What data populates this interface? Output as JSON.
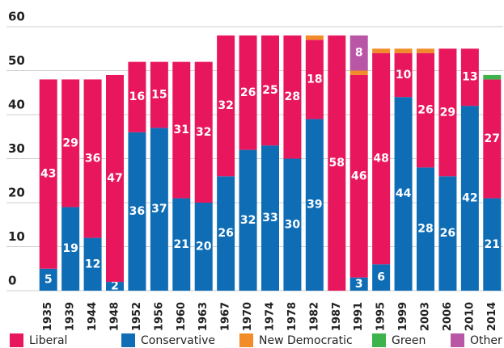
{
  "chart_data": {
    "type": "stacked_bar",
    "categories": [
      "1935",
      "1939",
      "1944",
      "1948",
      "1952",
      "1956",
      "1960",
      "1963",
      "1967",
      "1970",
      "1974",
      "1978",
      "1982",
      "1987",
      "1991",
      "1995",
      "1999",
      "2003",
      "2006",
      "2010",
      "2014"
    ],
    "series": [
      {
        "name": "Liberal",
        "color": "#e8175d",
        "values": [
          43,
          29,
          36,
          47,
          16,
          15,
          31,
          32,
          32,
          26,
          25,
          28,
          18,
          58,
          46,
          48,
          10,
          26,
          29,
          13,
          27
        ]
      },
      {
        "name": "Conservative",
        "color": "#0f6db5",
        "values": [
          5,
          19,
          12,
          2,
          36,
          37,
          21,
          20,
          26,
          32,
          33,
          30,
          39,
          0,
          3,
          6,
          44,
          28,
          26,
          42,
          21
        ]
      },
      {
        "name": "New Democratic",
        "color": "#f28c28",
        "values": [
          0,
          0,
          0,
          0,
          0,
          0,
          0,
          0,
          0,
          0,
          0,
          0,
          1,
          0,
          1,
          1,
          1,
          1,
          0,
          0,
          0
        ]
      },
      {
        "name": "Green",
        "color": "#3cb44b",
        "values": [
          0,
          0,
          0,
          0,
          0,
          0,
          0,
          0,
          0,
          0,
          0,
          0,
          0,
          0,
          0,
          0,
          0,
          0,
          0,
          0,
          1
        ]
      },
      {
        "name": "Other",
        "color": "#b956a6",
        "values": [
          0,
          0,
          0,
          0,
          0,
          0,
          0,
          0,
          0,
          0,
          0,
          0,
          0,
          0,
          8,
          0,
          0,
          0,
          0,
          0,
          0
        ]
      }
    ],
    "ylim": [
      0,
      60
    ],
    "yticks": [
      0,
      10,
      20,
      30,
      40,
      50,
      60
    ],
    "grid": true,
    "legend": "bottom"
  }
}
